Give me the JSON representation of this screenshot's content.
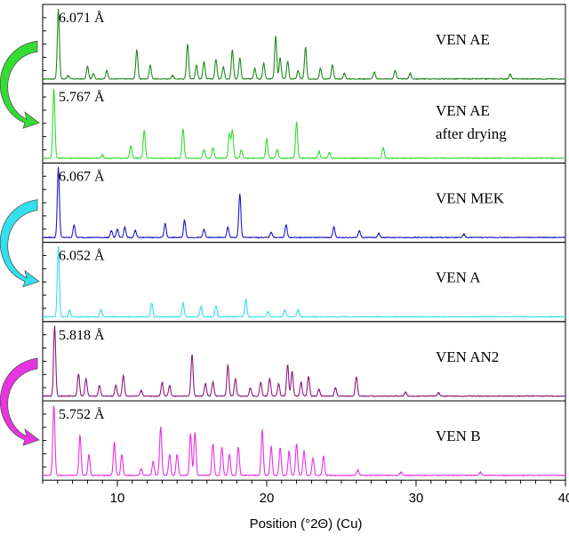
{
  "chart_data": {
    "type": "line",
    "xlabel": "Position (°2Θ) (Cu)",
    "xlim": [
      5,
      40
    ],
    "x_ticks": [
      10,
      20,
      30,
      40
    ],
    "panels": [
      {
        "name": "VEN AE",
        "annotation": "6.071 Å",
        "color": "#1f8a1f",
        "peaks": [
          {
            "x": 6.05,
            "y": 1.0
          },
          {
            "x": 6.7,
            "y": 0.05
          },
          {
            "x": 8.0,
            "y": 0.18
          },
          {
            "x": 8.4,
            "y": 0.08
          },
          {
            "x": 9.3,
            "y": 0.12
          },
          {
            "x": 11.3,
            "y": 0.42
          },
          {
            "x": 12.2,
            "y": 0.2
          },
          {
            "x": 13.7,
            "y": 0.05
          },
          {
            "x": 14.7,
            "y": 0.5
          },
          {
            "x": 15.3,
            "y": 0.2
          },
          {
            "x": 15.8,
            "y": 0.25
          },
          {
            "x": 16.6,
            "y": 0.28
          },
          {
            "x": 17.1,
            "y": 0.18
          },
          {
            "x": 17.7,
            "y": 0.42
          },
          {
            "x": 18.2,
            "y": 0.3
          },
          {
            "x": 19.2,
            "y": 0.15
          },
          {
            "x": 19.8,
            "y": 0.22
          },
          {
            "x": 20.6,
            "y": 0.62
          },
          {
            "x": 20.9,
            "y": 0.3
          },
          {
            "x": 21.4,
            "y": 0.25
          },
          {
            "x": 22.1,
            "y": 0.12
          },
          {
            "x": 22.6,
            "y": 0.45
          },
          {
            "x": 23.6,
            "y": 0.15
          },
          {
            "x": 24.4,
            "y": 0.2
          },
          {
            "x": 25.2,
            "y": 0.08
          },
          {
            "x": 27.2,
            "y": 0.1
          },
          {
            "x": 28.6,
            "y": 0.12
          },
          {
            "x": 29.6,
            "y": 0.08
          },
          {
            "x": 36.3,
            "y": 0.07
          }
        ]
      },
      {
        "name": "VEN AE",
        "name_line2": "after drying",
        "annotation": "5.767 Å",
        "color": "#33dd33",
        "peaks": [
          {
            "x": 5.75,
            "y": 1.0
          },
          {
            "x": 9.0,
            "y": 0.05
          },
          {
            "x": 10.9,
            "y": 0.18
          },
          {
            "x": 11.8,
            "y": 0.4
          },
          {
            "x": 14.4,
            "y": 0.42
          },
          {
            "x": 15.8,
            "y": 0.12
          },
          {
            "x": 16.4,
            "y": 0.15
          },
          {
            "x": 17.5,
            "y": 0.35
          },
          {
            "x": 17.7,
            "y": 0.4
          },
          {
            "x": 18.3,
            "y": 0.12
          },
          {
            "x": 20.0,
            "y": 0.28
          },
          {
            "x": 20.7,
            "y": 0.12
          },
          {
            "x": 22.0,
            "y": 0.52
          },
          {
            "x": 23.5,
            "y": 0.1
          },
          {
            "x": 24.2,
            "y": 0.08
          },
          {
            "x": 27.8,
            "y": 0.15
          }
        ]
      },
      {
        "name": "VEN MEK",
        "annotation": "6.067 Å",
        "color": "#1a1acc",
        "peaks": [
          {
            "x": 6.05,
            "y": 1.0
          },
          {
            "x": 7.1,
            "y": 0.18
          },
          {
            "x": 9.6,
            "y": 0.1
          },
          {
            "x": 10.0,
            "y": 0.12
          },
          {
            "x": 10.5,
            "y": 0.15
          },
          {
            "x": 11.2,
            "y": 0.1
          },
          {
            "x": 13.2,
            "y": 0.2
          },
          {
            "x": 14.5,
            "y": 0.25
          },
          {
            "x": 15.8,
            "y": 0.12
          },
          {
            "x": 17.4,
            "y": 0.15
          },
          {
            "x": 18.2,
            "y": 0.62
          },
          {
            "x": 20.3,
            "y": 0.08
          },
          {
            "x": 21.3,
            "y": 0.18
          },
          {
            "x": 24.5,
            "y": 0.15
          },
          {
            "x": 26.2,
            "y": 0.1
          },
          {
            "x": 27.5,
            "y": 0.06
          },
          {
            "x": 33.2,
            "y": 0.05
          }
        ]
      },
      {
        "name": "VEN A",
        "annotation": "6.052 Å",
        "color": "#33e0ee",
        "peaks": [
          {
            "x": 6.05,
            "y": 1.0
          },
          {
            "x": 6.8,
            "y": 0.1
          },
          {
            "x": 8.9,
            "y": 0.1
          },
          {
            "x": 12.3,
            "y": 0.2
          },
          {
            "x": 14.4,
            "y": 0.2
          },
          {
            "x": 15.6,
            "y": 0.15
          },
          {
            "x": 16.6,
            "y": 0.16
          },
          {
            "x": 18.6,
            "y": 0.25
          },
          {
            "x": 20.1,
            "y": 0.08
          },
          {
            "x": 21.2,
            "y": 0.1
          },
          {
            "x": 22.1,
            "y": 0.1
          }
        ]
      },
      {
        "name": "VEN AN2",
        "annotation": "5.818 Å",
        "color": "#8b1a7a",
        "peaks": [
          {
            "x": 5.8,
            "y": 1.0
          },
          {
            "x": 7.4,
            "y": 0.32
          },
          {
            "x": 7.9,
            "y": 0.25
          },
          {
            "x": 8.8,
            "y": 0.15
          },
          {
            "x": 9.9,
            "y": 0.15
          },
          {
            "x": 10.4,
            "y": 0.3
          },
          {
            "x": 11.6,
            "y": 0.08
          },
          {
            "x": 13.0,
            "y": 0.2
          },
          {
            "x": 13.5,
            "y": 0.15
          },
          {
            "x": 15.0,
            "y": 0.6
          },
          {
            "x": 15.9,
            "y": 0.18
          },
          {
            "x": 16.4,
            "y": 0.2
          },
          {
            "x": 17.4,
            "y": 0.45
          },
          {
            "x": 17.9,
            "y": 0.25
          },
          {
            "x": 18.9,
            "y": 0.12
          },
          {
            "x": 19.6,
            "y": 0.2
          },
          {
            "x": 20.2,
            "y": 0.25
          },
          {
            "x": 20.8,
            "y": 0.18
          },
          {
            "x": 21.4,
            "y": 0.45
          },
          {
            "x": 21.7,
            "y": 0.35
          },
          {
            "x": 22.3,
            "y": 0.2
          },
          {
            "x": 22.8,
            "y": 0.28
          },
          {
            "x": 23.5,
            "y": 0.1
          },
          {
            "x": 24.6,
            "y": 0.12
          },
          {
            "x": 26.0,
            "y": 0.28
          },
          {
            "x": 29.3,
            "y": 0.06
          },
          {
            "x": 31.5,
            "y": 0.05
          }
        ]
      },
      {
        "name": "VEN B",
        "annotation": "5.752 Å",
        "color": "#e833e0",
        "peaks": [
          {
            "x": 5.75,
            "y": 1.0
          },
          {
            "x": 7.5,
            "y": 0.58
          },
          {
            "x": 8.1,
            "y": 0.3
          },
          {
            "x": 9.8,
            "y": 0.48
          },
          {
            "x": 10.3,
            "y": 0.3
          },
          {
            "x": 11.6,
            "y": 0.1
          },
          {
            "x": 12.4,
            "y": 0.2
          },
          {
            "x": 12.9,
            "y": 0.7
          },
          {
            "x": 13.5,
            "y": 0.3
          },
          {
            "x": 14.0,
            "y": 0.3
          },
          {
            "x": 14.9,
            "y": 0.6
          },
          {
            "x": 15.2,
            "y": 0.62
          },
          {
            "x": 16.4,
            "y": 0.45
          },
          {
            "x": 17.0,
            "y": 0.4
          },
          {
            "x": 17.5,
            "y": 0.3
          },
          {
            "x": 18.1,
            "y": 0.4
          },
          {
            "x": 19.7,
            "y": 0.65
          },
          {
            "x": 20.3,
            "y": 0.42
          },
          {
            "x": 20.9,
            "y": 0.4
          },
          {
            "x": 21.5,
            "y": 0.35
          },
          {
            "x": 22.0,
            "y": 0.45
          },
          {
            "x": 22.5,
            "y": 0.35
          },
          {
            "x": 23.1,
            "y": 0.25
          },
          {
            "x": 23.8,
            "y": 0.28
          },
          {
            "x": 26.1,
            "y": 0.08
          },
          {
            "x": 29.0,
            "y": 0.05
          },
          {
            "x": 34.3,
            "y": 0.05
          }
        ]
      }
    ],
    "arrows": [
      {
        "color": "#33dd33"
      },
      {
        "color": "#33e0ee"
      },
      {
        "color": "#e833e0"
      }
    ]
  }
}
